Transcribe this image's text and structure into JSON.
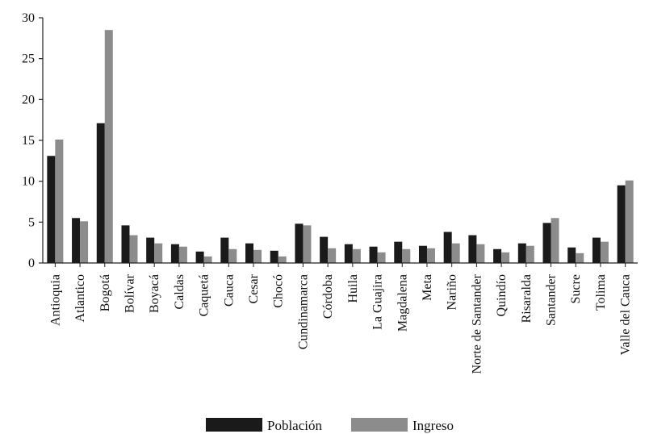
{
  "chart_data": {
    "type": "bar",
    "title": "",
    "xlabel": "",
    "ylabel": "",
    "ylim": [
      0,
      30
    ],
    "yticks": [
      0,
      5,
      10,
      15,
      20,
      25,
      30
    ],
    "grid": false,
    "legend_position": "bottom",
    "categories": [
      "Antioquia",
      "Atlantico",
      "Bogotá",
      "Bolívar",
      "Boyacá",
      "Caldas",
      "Caquetá",
      "Cauca",
      "Cesar",
      "Chocó",
      "Cundinamarca",
      "Córdoba",
      "Huila",
      "La Guajira",
      "Magdalena",
      "Meta",
      "Nariño",
      "Norte de Santander",
      "Quindío",
      "Risaralda",
      "Santander",
      "Sucre",
      "Tolima",
      "Valle del Cauca"
    ],
    "series": [
      {
        "name": "Población",
        "color": "#1a1a1a",
        "values": [
          13.1,
          5.5,
          17.1,
          4.6,
          3.1,
          2.3,
          1.4,
          3.1,
          2.4,
          1.5,
          4.8,
          3.2,
          2.3,
          2.0,
          2.6,
          2.1,
          3.8,
          3.4,
          1.7,
          2.4,
          4.9,
          1.9,
          3.1,
          9.5
        ]
      },
      {
        "name": "Ingreso",
        "color": "#8c8c8c",
        "values": [
          15.1,
          5.1,
          28.5,
          3.4,
          2.4,
          2.0,
          0.8,
          1.7,
          1.6,
          0.8,
          4.6,
          1.8,
          1.7,
          1.3,
          1.7,
          1.8,
          2.4,
          2.3,
          1.3,
          2.1,
          5.5,
          1.2,
          2.6,
          10.1
        ]
      }
    ]
  }
}
